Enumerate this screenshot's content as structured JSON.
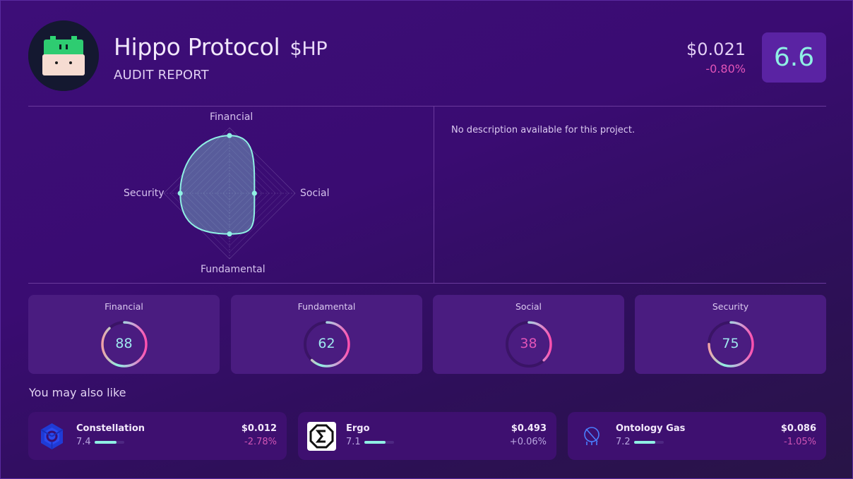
{
  "header": {
    "project_name": "Hippo Protocol",
    "ticker": "$HP",
    "subtitle": "AUDIT REPORT",
    "price": "$0.021",
    "price_change": "-0.80%",
    "overall_score": "6.6",
    "logo_icon": "hippo-logo-icon"
  },
  "radar": {
    "labels": {
      "top": "Financial",
      "right": "Social",
      "bottom": "Fundamental",
      "left": "Security"
    },
    "values": {
      "financial": 88,
      "social": 38,
      "fundamental": 62,
      "security": 75
    },
    "max": 100,
    "colors": {
      "stroke": "#8ff0e4",
      "fill": "rgba(143,240,228,0.35)",
      "grid": "#6b4a9a"
    }
  },
  "description": "No description available for this project.",
  "metrics": [
    {
      "label": "Financial",
      "value": "88",
      "percent": 88,
      "value_color": "#9fe8ee"
    },
    {
      "label": "Fundamental",
      "value": "62",
      "percent": 62,
      "value_color": "#9fe8ee"
    },
    {
      "label": "Social",
      "value": "38",
      "percent": 38,
      "value_color": "#e254b8"
    },
    {
      "label": "Security",
      "value": "75",
      "percent": 75,
      "value_color": "#9fe8ee"
    }
  ],
  "recommendations": {
    "title": "You may also like",
    "items": [
      {
        "name": "Constellation",
        "score": "7.4",
        "score_pct": 74,
        "price": "$0.012",
        "change": "-2.78%",
        "change_color": "#d055b5",
        "icon": "constellation-logo-icon"
      },
      {
        "name": "Ergo",
        "score": "7.1",
        "score_pct": 71,
        "price": "$0.493",
        "change": "+0.06%",
        "change_color": "#b9a6e0",
        "icon": "ergo-logo-icon"
      },
      {
        "name": "Ontology Gas",
        "score": "7.2",
        "score_pct": 72,
        "price": "$0.086",
        "change": "-1.05%",
        "change_color": "#d055b5",
        "icon": "ontology-gas-logo-icon"
      }
    ]
  },
  "colors": {
    "accent_teal": "#8ff0e4",
    "negative_pink": "#e254b8",
    "card_bg": "#4a1c80",
    "score_box_bg": "#5a23a3"
  }
}
